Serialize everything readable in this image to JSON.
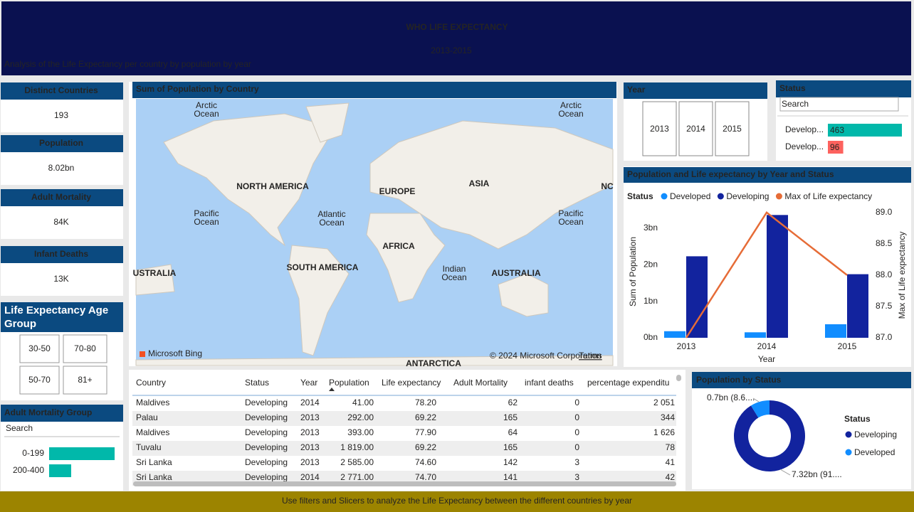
{
  "header": {
    "title": "WHO LIFE EXPECTANCY",
    "subtitle": "2013-2015",
    "description": "Analysis of the Life Expectancy per country by population by year"
  },
  "cards": [
    {
      "title": "Distinct Countries",
      "value": "193"
    },
    {
      "title": "Population",
      "value": "8.02bn"
    },
    {
      "title": "Adult Mortality",
      "value": "84K"
    },
    {
      "title": "Infant Deaths",
      "value": "13K"
    }
  ],
  "age_group": {
    "title": "Life Expectancy Age Group",
    "options": [
      "30-50",
      "70-80",
      "50-70",
      "81+"
    ]
  },
  "year_slicer": {
    "title": "Year",
    "options": [
      "2013",
      "2014",
      "2015"
    ]
  },
  "map": {
    "title": "Sum of Population by Country",
    "labels": [
      "Arctic Ocean",
      "Arctic Ocean",
      "NORTH AMERICA",
      "EUROPE",
      "ASIA",
      "NC",
      "Pacific Ocean",
      "Atlantic Ocean",
      "Pacific Ocean",
      "USTRALIA",
      "SOUTH AMERICA",
      "AFRICA",
      "Indian Ocean",
      "AUSTRALIA",
      "ANTARCTICA"
    ],
    "credits": [
      "Microsoft Bing",
      "© 2024 Microsoft Corporation",
      "Terms"
    ]
  },
  "table": {
    "columns": [
      "Country",
      "Status",
      "Year",
      "Population",
      "Life expectancy",
      "Adult Mortality",
      "infant deaths",
      "percentage expenditu"
    ],
    "rows": [
      [
        "Maldives",
        "Developing",
        "2014",
        "41.00",
        "78.20",
        "62",
        "0",
        "2 051"
      ],
      [
        "Palau",
        "Developing",
        "2013",
        "292.00",
        "69.22",
        "165",
        "0",
        "344"
      ],
      [
        "Maldives",
        "Developing",
        "2013",
        "393.00",
        "77.90",
        "64",
        "0",
        "1 626"
      ],
      [
        "Tuvalu",
        "Developing",
        "2013",
        "1 819.00",
        "69.22",
        "165",
        "0",
        "78"
      ],
      [
        "Sri Lanka",
        "Developing",
        "2013",
        "2 585.00",
        "74.60",
        "142",
        "3",
        "41"
      ],
      [
        "Sri Lanka",
        "Developing",
        "2014",
        "2 771.00",
        "74.70",
        "141",
        "3",
        "42"
      ]
    ]
  },
  "footer": "Use filters and Slicers to analyze the Life Expectancy between the different countries by year",
  "chart_data": [
    {
      "type": "combo",
      "title": "Population and Life expectancy by Year and Status",
      "legend_title": "Status",
      "categories": [
        "2013",
        "2014",
        "2015"
      ],
      "series": [
        {
          "name": "Developed",
          "color": "#118dff",
          "values": [
            0.18,
            0.15,
            0.37
          ]
        },
        {
          "name": "Developing",
          "color": "#12239e",
          "values": [
            2.23,
            3.36,
            1.74
          ]
        },
        {
          "name": "Max of Life expectancy",
          "color": "#e66c37",
          "values": [
            87.0,
            89.0,
            88.0
          ],
          "axis": "y2"
        }
      ],
      "xlabel": "Year",
      "ylabel": "Sum of Population",
      "y2label": "Max of Life expectancy",
      "ylim": [
        0,
        3.6
      ],
      "yticks": [
        {
          "value": 0,
          "label": "0bn"
        },
        {
          "value": 1,
          "label": "1bn"
        },
        {
          "value": 2,
          "label": "2bn"
        },
        {
          "value": 3,
          "label": "3bn"
        }
      ],
      "y2lim": [
        87,
        89.1
      ],
      "y2ticks": [
        {
          "value": 87,
          "label": "87.0"
        },
        {
          "value": 87.5,
          "label": "87.5"
        },
        {
          "value": 88,
          "label": "88.0"
        },
        {
          "value": 88.5,
          "label": "88.5"
        },
        {
          "value": 89,
          "label": "89.0"
        }
      ]
    },
    {
      "type": "donut",
      "title": "Population by Status",
      "legend_title": "Status",
      "categories": [
        "Developing",
        "Developed"
      ],
      "values": [
        7.32,
        0.7
      ],
      "value_labels": [
        "7.32bn (91....",
        "0.7bn (8.6...."
      ],
      "colors": [
        "#12239e",
        "#118dff"
      ]
    },
    {
      "type": "hbar",
      "title": "Status",
      "search": "Search",
      "categories": [
        "Develop...",
        "Develop..."
      ],
      "values": [
        463,
        96
      ],
      "colors": [
        "#01b8aa",
        "#fd625e"
      ]
    },
    {
      "type": "hbar",
      "title": "Adult Mortality Group",
      "search": "Search",
      "categories": [
        "0-199",
        "200-400"
      ],
      "values": [
        92,
        31
      ],
      "colors": [
        "#01b8aa",
        "#01b8aa"
      ]
    }
  ]
}
